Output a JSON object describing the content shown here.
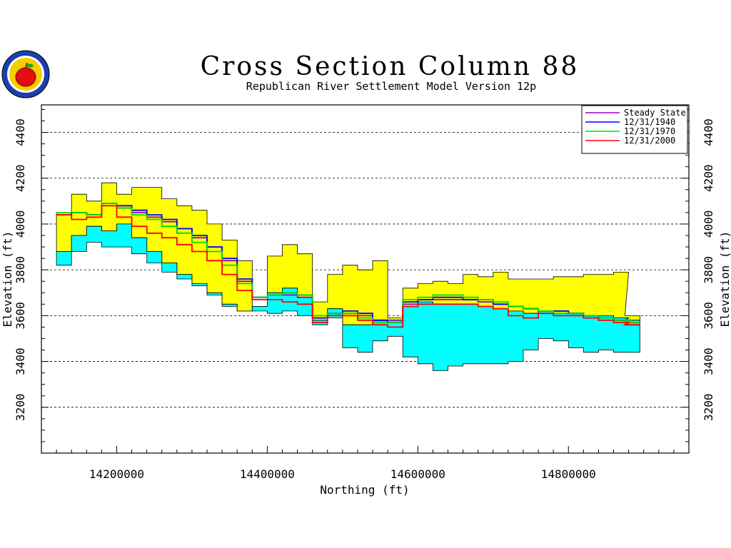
{
  "chart_data": {
    "type": "area",
    "title": "Cross Section Column 88",
    "subtitle": "Republican River Settlement Model Version 12p",
    "xlabel": "Northing (ft)",
    "ylabel": "Elevation (ft)",
    "xlim": [
      14100000,
      14960000
    ],
    "ylim": [
      3000,
      4520
    ],
    "x_ticks": [
      {
        "value": 14200000,
        "label": "14200000"
      },
      {
        "value": 14400000,
        "label": "14400000"
      },
      {
        "value": 14600000,
        "label": "14600000"
      },
      {
        "value": 14800000,
        "label": "14800000"
      }
    ],
    "y_ticks": [
      {
        "value": 3200,
        "label": "3200"
      },
      {
        "value": 3400,
        "label": "3400"
      },
      {
        "value": 3600,
        "label": "3600"
      },
      {
        "value": 3800,
        "label": "3800"
      },
      {
        "value": 4000,
        "label": "4000"
      },
      {
        "value": 4200,
        "label": "4200"
      },
      {
        "value": 4400,
        "label": "4400"
      }
    ],
    "gridlines_y": [
      3200,
      3400,
      3600,
      3800,
      4000,
      4200,
      4400
    ],
    "grid": "horizontal dashed",
    "legend_position": "top-right",
    "x": [
      14130000,
      14150000,
      14170000,
      14190000,
      14210000,
      14230000,
      14250000,
      14270000,
      14290000,
      14310000,
      14330000,
      14350000,
      14370000,
      14390000,
      14410000,
      14430000,
      14450000,
      14470000,
      14490000,
      14510000,
      14530000,
      14550000,
      14570000,
      14590000,
      14610000,
      14630000,
      14650000,
      14670000,
      14690000,
      14710000,
      14730000,
      14750000,
      14770000,
      14790000,
      14810000,
      14830000,
      14850000,
      14870000,
      14885000
    ],
    "layers": [
      {
        "name": "upper layer",
        "color": "#ffff00",
        "top": [
          4050,
          4130,
          4100,
          4180,
          4130,
          4160,
          4160,
          4110,
          4080,
          4060,
          4000,
          3930,
          3840,
          3640,
          3860,
          3910,
          3870,
          3660,
          3780,
          3820,
          3800,
          3840,
          3590,
          3720,
          3740,
          3750,
          3740,
          3780,
          3770,
          3790,
          3760,
          3760,
          3760,
          3770,
          3770,
          3780,
          3780,
          3790,
          3600
        ],
        "bottom": [
          3880,
          3950,
          3990,
          3970,
          4000,
          3940,
          3880,
          3830,
          3780,
          3740,
          3700,
          3650,
          3620,
          3640,
          3700,
          3720,
          3680,
          3580,
          3630,
          3560,
          3560,
          3580,
          3580,
          3640,
          3660,
          3650,
          3650,
          3650,
          3640,
          3630,
          3620,
          3610,
          3620,
          3610,
          3610,
          3600,
          3600,
          3590,
          3580
        ]
      },
      {
        "name": "lower layer",
        "color": "#00ffff",
        "top": [
          3880,
          3950,
          3990,
          3970,
          4000,
          3940,
          3880,
          3830,
          3780,
          3740,
          3700,
          3650,
          3620,
          3640,
          3700,
          3720,
          3680,
          3580,
          3630,
          3560,
          3560,
          3580,
          3580,
          3640,
          3660,
          3650,
          3650,
          3650,
          3640,
          3630,
          3620,
          3610,
          3620,
          3610,
          3610,
          3600,
          3600,
          3590,
          3580
        ],
        "bottom": [
          3820,
          3880,
          3920,
          3900,
          3900,
          3870,
          3830,
          3790,
          3760,
          3730,
          3690,
          3640,
          3620,
          3620,
          3610,
          3620,
          3600,
          3560,
          3590,
          3460,
          3440,
          3490,
          3510,
          3420,
          3390,
          3360,
          3380,
          3390,
          3390,
          3390,
          3400,
          3450,
          3500,
          3490,
          3460,
          3440,
          3450,
          3440,
          3440
        ]
      }
    ],
    "series": [
      {
        "name": "Steady State",
        "color": "#a000c0",
        "values": [
          4040,
          4050,
          4040,
          4090,
          4070,
          4050,
          4030,
          4010,
          3980,
          3940,
          3900,
          3840,
          3750,
          3680,
          3690,
          3690,
          3680,
          3590,
          3610,
          3610,
          3600,
          3580,
          3580,
          3650,
          3670,
          3670,
          3670,
          3670,
          3660,
          3650,
          3640,
          3630,
          3620,
          3620,
          3610,
          3600,
          3590,
          3580,
          3570
        ]
      },
      {
        "name": "12/31/1940",
        "color": "#0000ff",
        "values": [
          4040,
          4050,
          4040,
          4090,
          4080,
          4060,
          4040,
          4020,
          3980,
          3950,
          3900,
          3850,
          3760,
          3680,
          3690,
          3700,
          3690,
          3590,
          3610,
          3620,
          3610,
          3580,
          3570,
          3660,
          3670,
          3680,
          3680,
          3670,
          3670,
          3650,
          3640,
          3630,
          3620,
          3620,
          3610,
          3600,
          3590,
          3580,
          3560
        ]
      },
      {
        "name": "12/31/1970",
        "color": "#00dd00",
        "values": [
          4050,
          4050,
          4040,
          4090,
          4070,
          4040,
          4020,
          3990,
          3960,
          3920,
          3880,
          3820,
          3740,
          3680,
          3690,
          3700,
          3690,
          3600,
          3610,
          3610,
          3590,
          3570,
          3570,
          3670,
          3680,
          3690,
          3690,
          3680,
          3670,
          3660,
          3640,
          3630,
          3620,
          3610,
          3610,
          3600,
          3590,
          3580,
          3570
        ]
      },
      {
        "name": "12/31/2000",
        "color": "#ff0000",
        "values": [
          4040,
          4020,
          4030,
          4080,
          4030,
          3990,
          3960,
          3940,
          3910,
          3880,
          3840,
          3780,
          3710,
          3670,
          3670,
          3660,
          3650,
          3570,
          3600,
          3600,
          3580,
          3560,
          3550,
          3640,
          3650,
          3650,
          3650,
          3650,
          3640,
          3630,
          3600,
          3590,
          3610,
          3600,
          3600,
          3590,
          3580,
          3570,
          3560
        ]
      }
    ]
  }
}
